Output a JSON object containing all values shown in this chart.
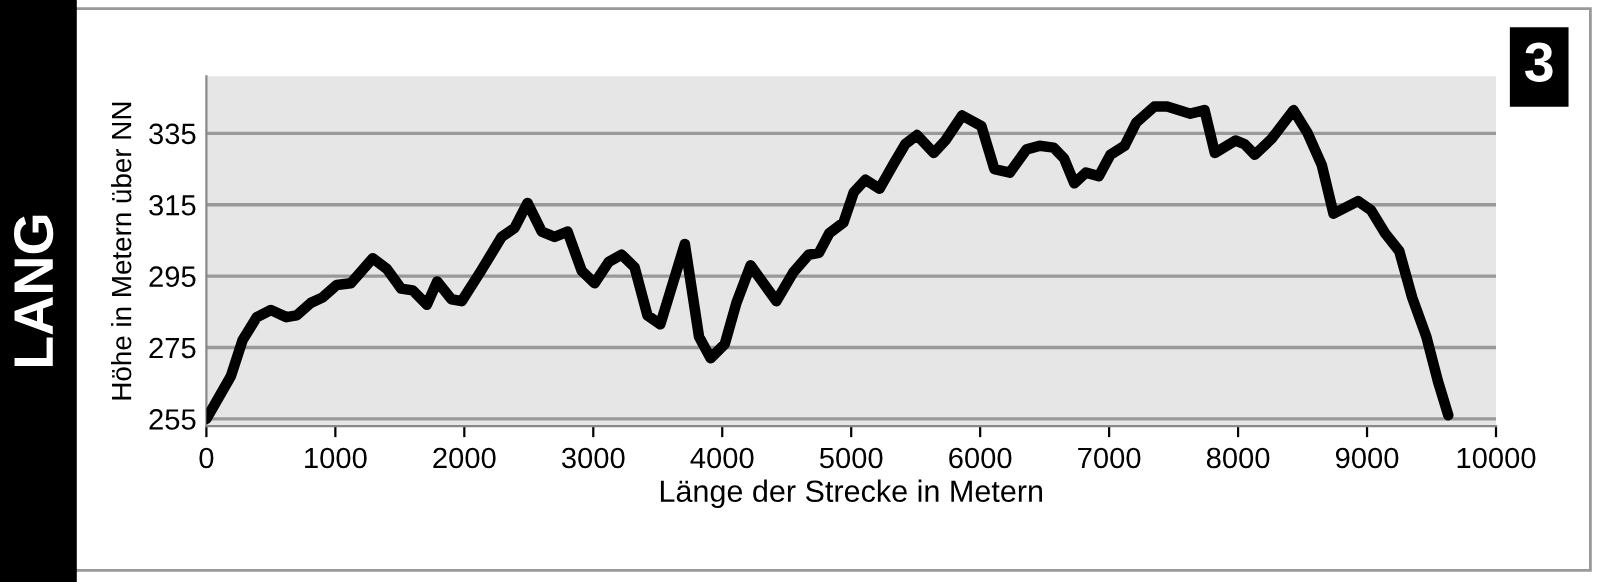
{
  "chart_data": {
    "type": "line",
    "xlabel": "Länge der Strecke in Metern",
    "ylabel": "Höhe in Metern über NN",
    "annotations": [
      "LANG",
      "3"
    ],
    "xlim": [
      0,
      10000
    ],
    "xticks": [
      0,
      1000,
      2000,
      3000,
      4000,
      5000,
      6000,
      7000,
      8000,
      9000,
      10000
    ],
    "ylim": [
      253,
      351
    ],
    "yticks": [
      255,
      275,
      295,
      315,
      335
    ],
    "grid": "y",
    "marker": "none",
    "line_style": "solid",
    "series": [
      {
        "color": "#000000",
        "x": [
          0,
          190,
          280,
          390,
          500,
          620,
          700,
          810,
          900,
          1010,
          1120,
          1290,
          1400,
          1510,
          1600,
          1710,
          1790,
          1900,
          1980,
          2130,
          2290,
          2390,
          2490,
          2600,
          2700,
          2800,
          2910,
          3010,
          3120,
          3220,
          3320,
          3420,
          3520,
          3710,
          3820,
          3910,
          4020,
          4110,
          4220,
          4420,
          4550,
          4670,
          4750,
          4830,
          4940,
          5020,
          5110,
          5220,
          5330,
          5420,
          5510,
          5640,
          5730,
          5860,
          6010,
          6110,
          6230,
          6360,
          6460,
          6570,
          6650,
          6730,
          6820,
          6920,
          7010,
          7120,
          7210,
          7350,
          7450,
          7630,
          7740,
          7820,
          7980,
          8050,
          8130,
          8260,
          8430,
          8540,
          8650,
          8740,
          8930,
          9030,
          9140,
          9250,
          9350,
          9460,
          9550,
          9630
        ],
        "values": [
          255,
          267,
          277,
          283.5,
          285.5,
          283.5,
          284,
          287.5,
          289,
          292.5,
          293,
          300,
          297,
          291.5,
          291,
          287,
          293.5,
          288.5,
          288,
          296.5,
          306,
          308.5,
          315.5,
          307.5,
          306,
          307.5,
          296.5,
          293,
          299,
          301,
          297.5,
          284,
          281.5,
          304,
          278,
          272,
          276,
          287.5,
          298,
          288,
          296,
          301,
          301.5,
          307,
          310,
          318.5,
          322,
          319.5,
          326.5,
          332,
          334.5,
          329.5,
          333,
          340,
          337,
          325,
          324,
          330.5,
          331.5,
          331,
          328,
          321,
          324,
          323,
          329,
          331.5,
          338,
          342.5,
          342.5,
          340.5,
          341.5,
          329.5,
          333,
          332,
          329,
          333.5,
          341.5,
          335,
          326,
          312.5,
          316,
          313.5,
          307,
          302,
          289,
          278,
          265.5,
          256
        ]
      }
    ]
  }
}
